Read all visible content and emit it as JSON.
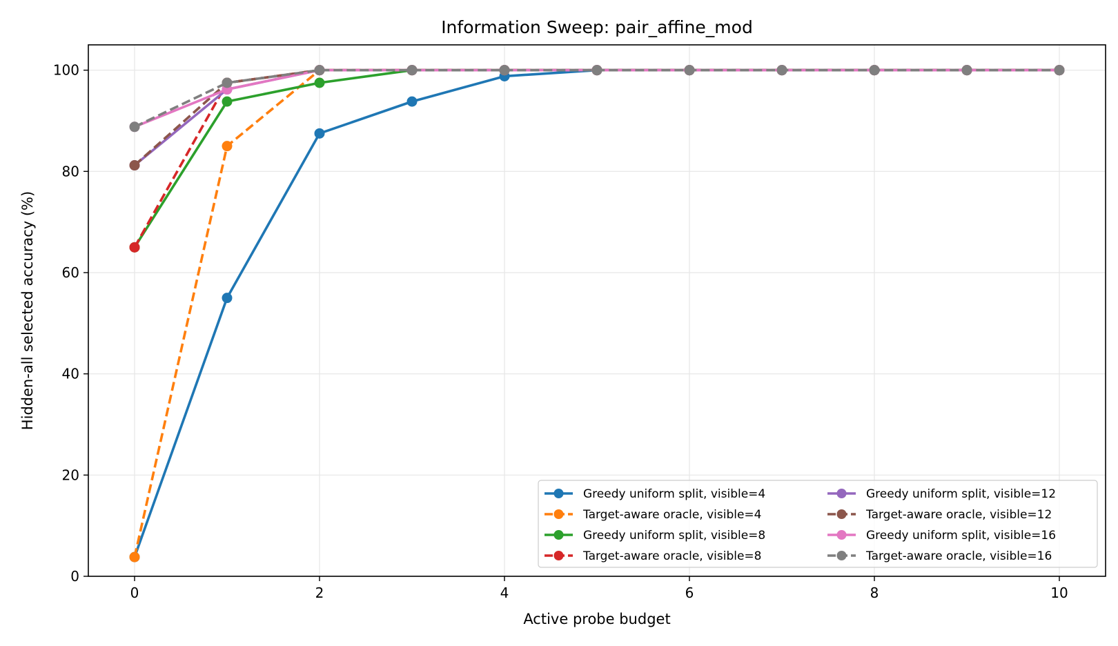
{
  "chart_data": {
    "type": "line",
    "title": "Information Sweep: pair_affine_mod",
    "xlabel": "Active probe budget",
    "ylabel": "Hidden-all selected accuracy (%)",
    "xlim": [
      -0.5,
      10.5
    ],
    "ylim": [
      0,
      105
    ],
    "xticks": [
      0,
      2,
      4,
      6,
      8,
      10
    ],
    "yticks": [
      0,
      20,
      40,
      60,
      80,
      100
    ],
    "grid": true,
    "legend_position": "lower-right",
    "legend_columns": 2,
    "x": [
      0,
      1,
      2,
      3,
      4,
      5,
      6,
      7,
      8,
      9,
      10
    ],
    "series": [
      {
        "name": "Greedy uniform split, visible=4",
        "color": "#1f77b4",
        "dash": "solid",
        "values": [
          3.8,
          55.0,
          87.5,
          93.8,
          98.8,
          100,
          100,
          100,
          100,
          100,
          100
        ]
      },
      {
        "name": "Target-aware oracle, visible=4",
        "color": "#ff7f0e",
        "dash": "dashed",
        "values": [
          3.8,
          85.0,
          100,
          100,
          100,
          100,
          100,
          100,
          100,
          100,
          100
        ]
      },
      {
        "name": "Greedy uniform split, visible=8",
        "color": "#2ca02c",
        "dash": "solid",
        "values": [
          65.0,
          93.8,
          97.5,
          100,
          100,
          100,
          100,
          100,
          100,
          100,
          100
        ]
      },
      {
        "name": "Target-aware oracle, visible=8",
        "color": "#d62728",
        "dash": "dashed",
        "values": [
          65.0,
          97.5,
          100,
          100,
          100,
          100,
          100,
          100,
          100,
          100,
          100
        ]
      },
      {
        "name": "Greedy uniform split, visible=12",
        "color": "#9467bd",
        "dash": "solid",
        "values": [
          81.2,
          96.2,
          100,
          100,
          100,
          100,
          100,
          100,
          100,
          100,
          100
        ]
      },
      {
        "name": "Target-aware oracle, visible=12",
        "color": "#8c564b",
        "dash": "dashed",
        "values": [
          81.2,
          97.5,
          100,
          100,
          100,
          100,
          100,
          100,
          100,
          100,
          100
        ]
      },
      {
        "name": "Greedy uniform split, visible=16",
        "color": "#e377c2",
        "dash": "solid",
        "values": [
          88.8,
          96.2,
          100,
          100,
          100,
          100,
          100,
          100,
          100,
          100,
          100
        ]
      },
      {
        "name": "Target-aware oracle, visible=16",
        "color": "#7f7f7f",
        "dash": "dashed",
        "values": [
          88.8,
          97.5,
          100,
          100,
          100,
          100,
          100,
          100,
          100,
          100,
          100
        ]
      }
    ]
  }
}
